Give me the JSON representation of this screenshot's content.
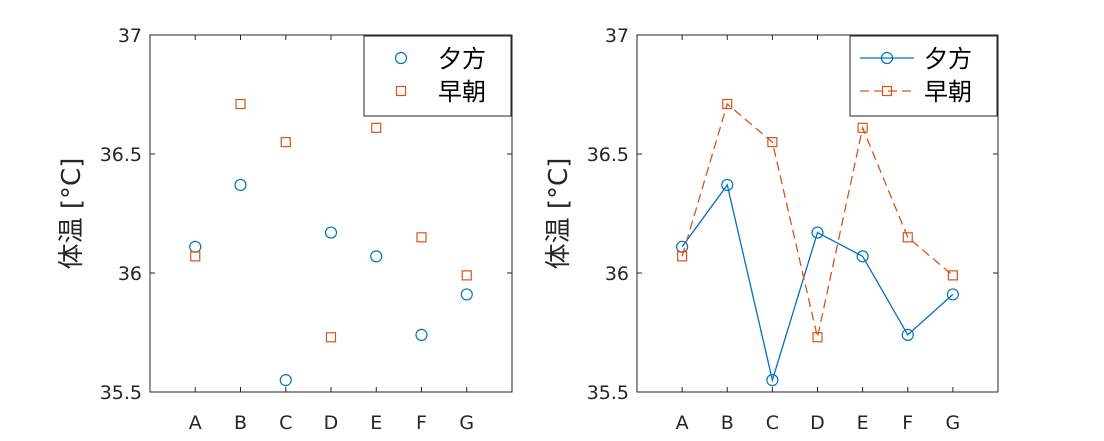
{
  "colors": {
    "series1": "#0072bd",
    "series2": "#d95319",
    "axis": "#262626",
    "background": "#ffffff"
  },
  "chart_data": [
    {
      "type": "scatter",
      "title": "",
      "xlabel": "",
      "ylabel": "体温 [°C]",
      "categories": [
        "A",
        "B",
        "C",
        "D",
        "E",
        "F",
        "G"
      ],
      "ylim": [
        35.5,
        37
      ],
      "yticks": [
        35.5,
        36,
        36.5,
        37
      ],
      "ytick_labels": [
        "35.5",
        "36",
        "36.5",
        "37"
      ],
      "grid": false,
      "legend_position": "top-right",
      "series": [
        {
          "name": "夕方",
          "marker": "circle",
          "line": "none",
          "values": [
            36.11,
            36.37,
            35.55,
            36.17,
            36.07,
            35.74,
            35.91
          ]
        },
        {
          "name": "早朝",
          "marker": "square",
          "line": "none",
          "values": [
            36.07,
            36.71,
            36.55,
            35.73,
            36.61,
            36.15,
            35.99
          ]
        }
      ]
    },
    {
      "type": "line",
      "title": "",
      "xlabel": "",
      "ylabel": "体温 [°C]",
      "categories": [
        "A",
        "B",
        "C",
        "D",
        "E",
        "F",
        "G"
      ],
      "ylim": [
        35.5,
        37
      ],
      "yticks": [
        35.5,
        36,
        36.5,
        37
      ],
      "ytick_labels": [
        "35.5",
        "36",
        "36.5",
        "37"
      ],
      "grid": false,
      "legend_position": "top-right",
      "series": [
        {
          "name": "夕方",
          "marker": "circle",
          "line": "solid",
          "values": [
            36.11,
            36.37,
            35.55,
            36.17,
            36.07,
            35.74,
            35.91
          ]
        },
        {
          "name": "早朝",
          "marker": "square",
          "line": "dashed",
          "values": [
            36.07,
            36.71,
            36.55,
            35.73,
            36.61,
            36.15,
            35.99
          ]
        }
      ]
    }
  ]
}
